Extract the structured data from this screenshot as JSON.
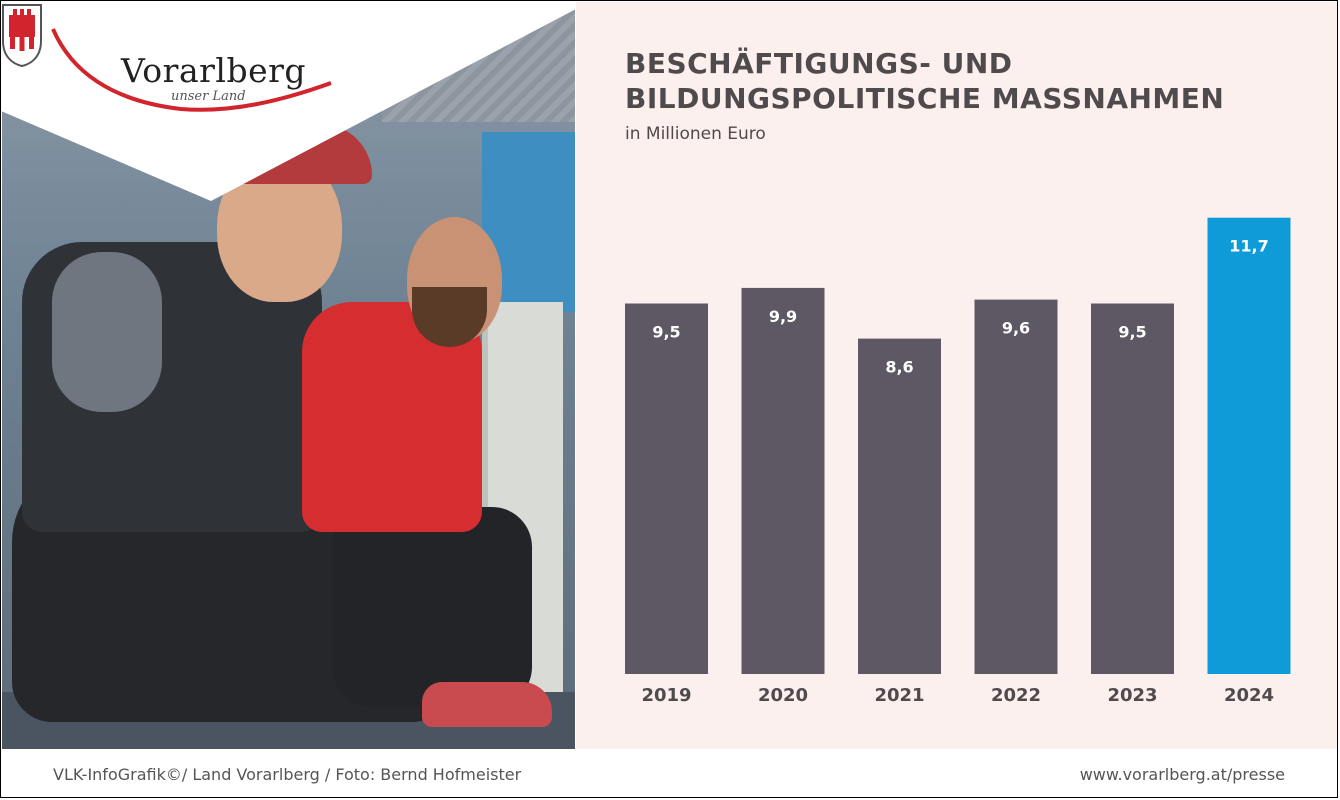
{
  "brand": {
    "name": "Vorarlberg",
    "tagline": "unser Land"
  },
  "chart_data": {
    "type": "bar",
    "title": "BESCHÄFTIGUNGS- UND BILDUNGSPOLITISCHE MASSNAHMEN",
    "title_lines": [
      "BESCHÄFTIGUNGS- UND",
      "BILDUNGSPOLITISCHE MASSNAHMEN"
    ],
    "subtitle": "in Millionen Euro",
    "categories": [
      "2019",
      "2020",
      "2021",
      "2022",
      "2023",
      "2024"
    ],
    "values": [
      9.5,
      9.9,
      8.6,
      9.6,
      9.5,
      11.7
    ],
    "value_labels": [
      "9,5",
      "9,9",
      "8,6",
      "9,6",
      "9,5",
      "11,7"
    ],
    "xlabel": "",
    "ylabel": "",
    "grid": false,
    "legend": "none",
    "colors": {
      "default": "#5e5865",
      "highlight": "#0e9bd8",
      "highlight_category": "2024",
      "background": "#fcf0ee"
    }
  },
  "footer": {
    "credit": "VLK-InfoGrafik©/ Land Vorarlberg / Foto: Bernd Hofmeister",
    "url": "www.vorarlberg.at/presse"
  }
}
